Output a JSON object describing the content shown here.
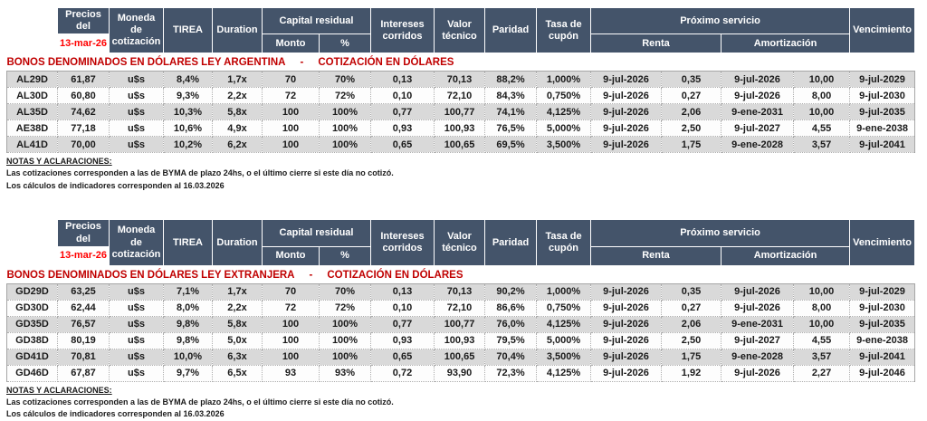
{
  "colors": {
    "header_bg": "#44546A",
    "header_text": "#FFFFFF",
    "section_title_red": "#C00000",
    "date_red": "#FF0000",
    "row_alt_gray": "#D9D9D9"
  },
  "table_header": {
    "precios_line1": "Precios del",
    "precios_line2": "13-mar-26",
    "moneda": "Moneda de cotización",
    "tirea": "TIREA",
    "duration": "Duration",
    "capital_residual": "Capital residual",
    "monto": "Monto",
    "pct": "%",
    "intereses": "Intereses corridos",
    "valor_tecnico": "Valor técnico",
    "paridad": "Paridad",
    "tasa_cupon": "Tasa de cupón",
    "proximo_servicio": "Próximo servicio",
    "renta": "Renta",
    "amortizacion": "Amortización",
    "vencimiento": "Vencimiento"
  },
  "sections": [
    {
      "title": "BONOS DENOMINADOS EN DÓLARES LEY ARGENTINA",
      "separator": "-",
      "subtitle": "COTIZACIÓN EN DÓLARES",
      "rows": [
        [
          "AL29D",
          "61,87",
          "u$s",
          "8,4%",
          "1,7x",
          "70",
          "70%",
          "0,13",
          "70,13",
          "88,2%",
          "1,000%",
          "9-jul-2026",
          "0,35",
          "9-jul-2026",
          "10,00",
          "9-jul-2029"
        ],
        [
          "AL30D",
          "60,80",
          "u$s",
          "9,3%",
          "2,2x",
          "72",
          "72%",
          "0,10",
          "72,10",
          "84,3%",
          "0,750%",
          "9-jul-2026",
          "0,27",
          "9-jul-2026",
          "8,00",
          "9-jul-2030"
        ],
        [
          "AL35D",
          "74,62",
          "u$s",
          "10,3%",
          "5,8x",
          "100",
          "100%",
          "0,77",
          "100,77",
          "74,1%",
          "4,125%",
          "9-jul-2026",
          "2,06",
          "9-ene-2031",
          "10,00",
          "9-jul-2035"
        ],
        [
          "AE38D",
          "77,18",
          "u$s",
          "10,6%",
          "4,9x",
          "100",
          "100%",
          "0,93",
          "100,93",
          "76,5%",
          "5,000%",
          "9-jul-2026",
          "2,50",
          "9-jul-2027",
          "4,55",
          "9-ene-2038"
        ],
        [
          "AL41D",
          "70,00",
          "u$s",
          "10,2%",
          "6,2x",
          "100",
          "100%",
          "0,65",
          "100,65",
          "69,5%",
          "3,500%",
          "9-jul-2026",
          "1,75",
          "9-ene-2028",
          "3,57",
          "9-jul-2041"
        ]
      ],
      "notes": {
        "heading": "NOTAS Y ACLARACIONES:",
        "line1": "Las cotizaciones corresponden a las de BYMA de plazo 24hs, o el último cierre si este día no cotizó.",
        "line2": "Los cálculos de indicadores corresponden al 16.03.2026"
      }
    },
    {
      "title": "BONOS DENOMINADOS EN DÓLARES LEY EXTRANJERA",
      "separator": "-",
      "subtitle": "COTIZACIÓN EN DÓLARES",
      "rows": [
        [
          "GD29D",
          "63,25",
          "u$s",
          "7,1%",
          "1,7x",
          "70",
          "70%",
          "0,13",
          "70,13",
          "90,2%",
          "1,000%",
          "9-jul-2026",
          "0,35",
          "9-jul-2026",
          "10,00",
          "9-jul-2029"
        ],
        [
          "GD30D",
          "62,44",
          "u$s",
          "8,0%",
          "2,2x",
          "72",
          "72%",
          "0,10",
          "72,10",
          "86,6%",
          "0,750%",
          "9-jul-2026",
          "0,27",
          "9-jul-2026",
          "8,00",
          "9-jul-2030"
        ],
        [
          "GD35D",
          "76,57",
          "u$s",
          "9,8%",
          "5,8x",
          "100",
          "100%",
          "0,77",
          "100,77",
          "76,0%",
          "4,125%",
          "9-jul-2026",
          "2,06",
          "9-ene-2031",
          "10,00",
          "9-jul-2035"
        ],
        [
          "GD38D",
          "80,19",
          "u$s",
          "9,8%",
          "5,0x",
          "100",
          "100%",
          "0,93",
          "100,93",
          "79,5%",
          "5,000%",
          "9-jul-2026",
          "2,50",
          "9-jul-2027",
          "4,55",
          "9-ene-2038"
        ],
        [
          "GD41D",
          "70,81",
          "u$s",
          "10,0%",
          "6,3x",
          "100",
          "100%",
          "0,65",
          "100,65",
          "70,4%",
          "3,500%",
          "9-jul-2026",
          "1,75",
          "9-ene-2028",
          "3,57",
          "9-jul-2041"
        ],
        [
          "GD46D",
          "67,87",
          "u$s",
          "9,7%",
          "6,5x",
          "93",
          "93%",
          "0,72",
          "93,90",
          "72,3%",
          "4,125%",
          "9-jul-2026",
          "1,92",
          "9-jul-2026",
          "2,27",
          "9-jul-2046"
        ]
      ],
      "notes": {
        "heading": "NOTAS Y ACLARACIONES:",
        "line1": "Las cotizaciones corresponden a las de BYMA de plazo 24hs, o el último cierre si este día no cotizó.",
        "line2": "Los cálculos de indicadores corresponden al 16.03.2026"
      }
    }
  ]
}
